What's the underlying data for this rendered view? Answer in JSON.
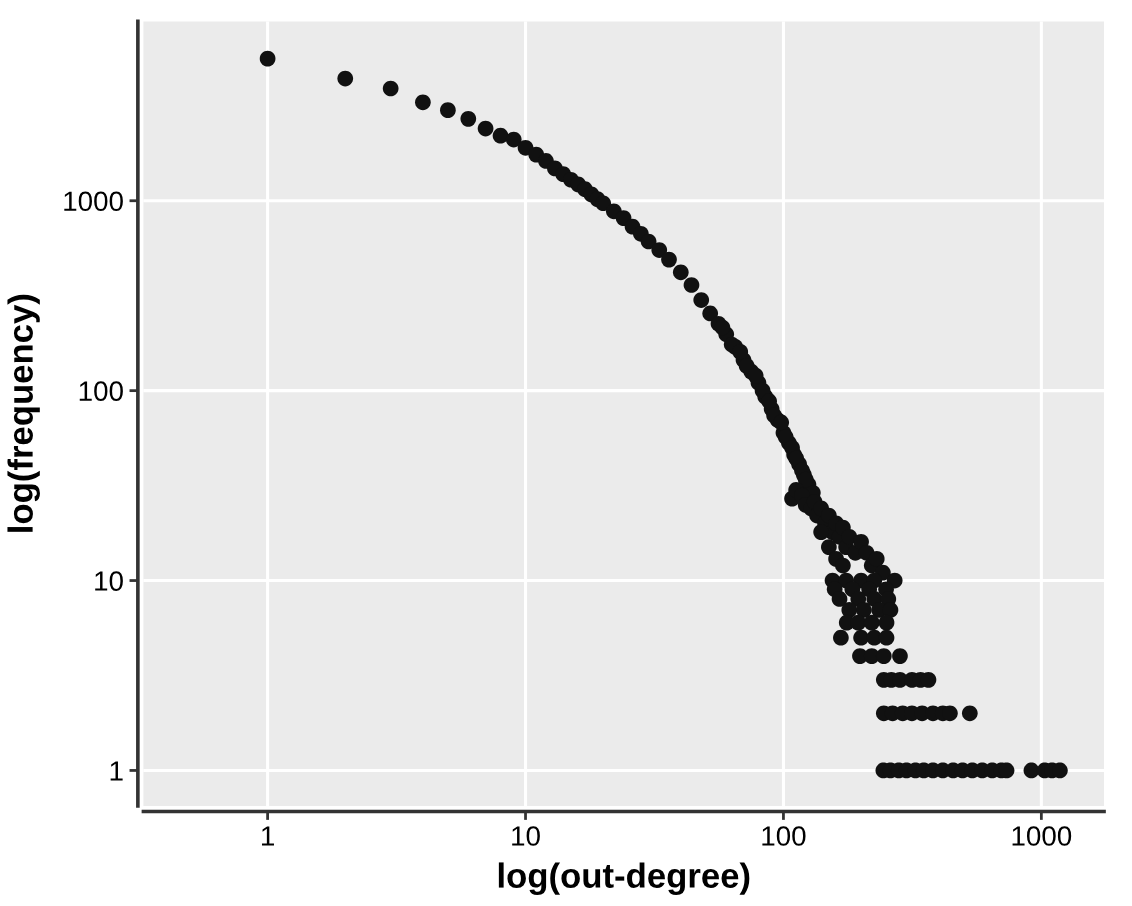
{
  "chart_data": {
    "type": "scatter",
    "xlabel": "log(out-degree)",
    "ylabel": "log(frequency)",
    "log": "xy",
    "grid": true,
    "marker": "circle",
    "xlim": [
      0.33,
      1750
    ],
    "ylim": [
      0.65,
      8800
    ],
    "xticks": [
      1,
      10,
      100,
      1000
    ],
    "yticks": [
      1,
      10,
      100,
      1000
    ],
    "series": [
      {
        "color": "#111111",
        "x": [
          1,
          2,
          3,
          4,
          5,
          6,
          7,
          8,
          9,
          10,
          11,
          12,
          13,
          14,
          15,
          16,
          17,
          18,
          19,
          20,
          22,
          24,
          26,
          28,
          30,
          33,
          36,
          40,
          44,
          48,
          52,
          56,
          60,
          65,
          70,
          75,
          80,
          85,
          90,
          95,
          100,
          105,
          110,
          115,
          120,
          125,
          130,
          58,
          63,
          68,
          72,
          78,
          83,
          88,
          92,
          98,
          102,
          108,
          112,
          118,
          122,
          108,
          112,
          118,
          122,
          128,
          132,
          135,
          140,
          145,
          150,
          155,
          160,
          165,
          170,
          175,
          180,
          190,
          200,
          210,
          220,
          230,
          243,
          140,
          150,
          160,
          170,
          155,
          175,
          200,
          225,
          270,
          158,
          185,
          215,
          250,
          165,
          195,
          225,
          255,
          180,
          205,
          235,
          260,
          176,
          195,
          220,
          251,
          167,
          200,
          225,
          251,
          198,
          220,
          245,
          283,
          245,
          262,
          283,
          315,
          340,
          365,
          245,
          265,
          290,
          315,
          345,
          380,
          415,
          442,
          528,
          244,
          260,
          280,
          300,
          325,
          350,
          380,
          415,
          455,
          495,
          540,
          590,
          645,
          700,
          733,
          915,
          1030,
          1100,
          1180
        ],
        "values": [
          5600,
          4400,
          3900,
          3300,
          3000,
          2700,
          2400,
          2200,
          2100,
          1900,
          1750,
          1620,
          1480,
          1380,
          1290,
          1220,
          1150,
          1080,
          1020,
          970,
          880,
          810,
          730,
          670,
          610,
          550,
          490,
          420,
          360,
          300,
          255,
          225,
          198,
          170,
          145,
          126,
          110,
          93,
          80,
          70,
          60,
          53,
          46,
          41,
          36,
          32,
          29,
          215,
          175,
          160,
          135,
          120,
          100,
          88,
          74,
          68,
          57,
          50,
          44,
          38,
          34,
          27,
          30,
          28,
          25,
          24,
          26,
          22,
          24,
          20,
          22,
          18,
          20,
          17,
          19,
          15,
          17,
          14,
          16,
          14,
          12,
          13,
          11,
          18,
          15,
          13,
          12,
          10,
          10,
          10,
          10,
          10,
          9,
          9,
          9,
          9,
          8,
          8,
          8,
          8,
          7,
          7,
          7,
          7,
          6,
          6,
          6,
          6,
          5,
          5,
          5,
          5,
          4,
          4,
          4,
          4,
          3,
          3,
          3,
          3,
          3,
          3,
          2,
          2,
          2,
          2,
          2,
          2,
          2,
          2,
          2,
          1,
          1,
          1,
          1,
          1,
          1,
          1,
          1,
          1,
          1,
          1,
          1,
          1,
          1,
          1,
          1,
          1,
          1,
          1
        ]
      }
    ]
  }
}
